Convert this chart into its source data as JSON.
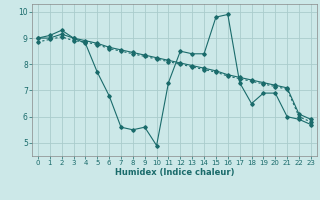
{
  "xlabel": "Humidex (Indice chaleur)",
  "background_color": "#cce8e8",
  "grid_color": "#aacccc",
  "line_color": "#1a6b6b",
  "xlim": [
    -0.5,
    23.5
  ],
  "ylim": [
    4.5,
    10.3
  ],
  "xticks": [
    0,
    1,
    2,
    3,
    4,
    5,
    6,
    7,
    8,
    9,
    10,
    11,
    12,
    13,
    14,
    15,
    16,
    17,
    18,
    19,
    20,
    21,
    22,
    23
  ],
  "yticks": [
    5,
    6,
    7,
    8,
    9,
    10
  ],
  "line1_x": [
    0,
    1,
    2,
    3,
    4,
    5,
    6,
    7,
    8,
    9,
    10,
    11,
    12,
    13,
    14,
    15,
    16,
    17,
    18,
    19,
    20,
    21,
    22,
    23
  ],
  "line1_y": [
    9.0,
    9.1,
    9.3,
    9.0,
    8.8,
    7.7,
    6.8,
    5.6,
    5.5,
    5.6,
    4.9,
    7.3,
    8.5,
    8.4,
    8.4,
    9.8,
    9.9,
    7.3,
    6.5,
    6.9,
    6.9,
    6.0,
    5.9,
    5.7
  ],
  "line2_x": [
    0,
    1,
    2,
    3,
    4,
    5,
    6,
    7,
    8,
    9,
    10,
    11,
    12,
    13,
    14,
    15,
    16,
    17,
    18,
    19,
    20,
    21,
    22,
    23
  ],
  "line2_y": [
    9.0,
    9.0,
    9.15,
    9.0,
    8.9,
    8.8,
    8.65,
    8.55,
    8.45,
    8.35,
    8.25,
    8.15,
    8.05,
    7.95,
    7.85,
    7.75,
    7.6,
    7.5,
    7.4,
    7.3,
    7.2,
    7.1,
    6.1,
    5.9
  ],
  "line3_x": [
    0,
    1,
    2,
    3,
    4,
    5,
    6,
    7,
    8,
    9,
    10,
    11,
    12,
    13,
    14,
    15,
    16,
    17,
    18,
    19,
    20,
    21,
    22,
    23
  ],
  "line3_y": [
    8.85,
    8.95,
    9.05,
    8.9,
    8.85,
    8.75,
    8.6,
    8.5,
    8.4,
    8.3,
    8.2,
    8.1,
    8.0,
    7.9,
    7.8,
    7.7,
    7.55,
    7.45,
    7.35,
    7.25,
    7.15,
    7.05,
    6.0,
    5.8
  ]
}
